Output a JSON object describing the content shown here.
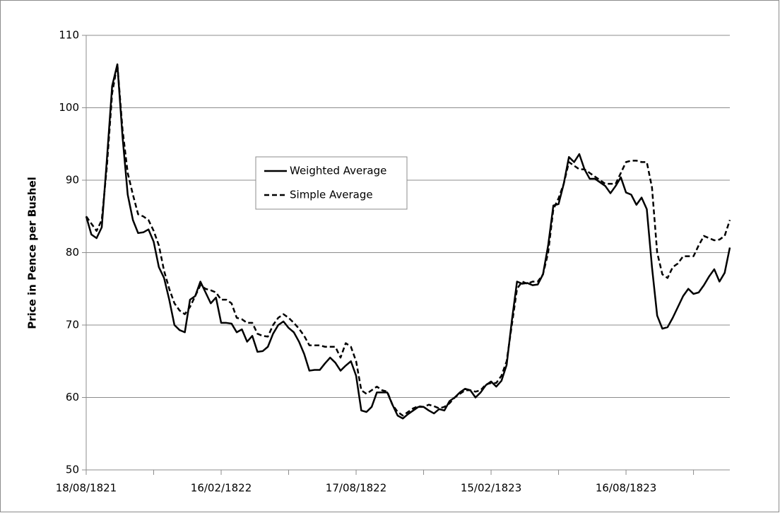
{
  "chart_data": {
    "type": "line",
    "ylabel": "Price in Pence per Bushel",
    "categories": [
      "18/08/1821",
      null,
      null,
      null,
      null,
      null,
      null,
      null,
      null,
      null,
      null,
      null,
      null,
      null,
      null,
      null,
      null,
      null,
      null,
      null,
      null,
      null,
      null,
      null,
      null,
      null,
      "16/02/1822",
      null,
      null,
      null,
      null,
      null,
      null,
      null,
      null,
      null,
      null,
      null,
      null,
      null,
      null,
      null,
      null,
      null,
      null,
      null,
      null,
      null,
      null,
      null,
      null,
      null,
      "17/08/1822",
      null,
      null,
      null,
      null,
      null,
      null,
      null,
      null,
      null,
      null,
      null,
      null,
      null,
      null,
      null,
      null,
      null,
      null,
      null,
      null,
      null,
      null,
      null,
      null,
      null,
      "15/02/1823",
      null,
      null,
      null,
      null,
      null,
      null,
      null,
      null,
      null,
      null,
      null,
      null,
      null,
      null,
      null,
      null,
      null,
      null,
      null,
      null,
      null,
      null,
      null,
      null,
      null,
      "16/08/1823",
      null,
      null,
      null,
      null,
      null,
      null,
      null,
      null,
      null,
      null,
      null,
      null,
      null,
      null,
      null,
      null,
      null,
      null,
      null,
      null
    ],
    "series": [
      {
        "name": "Weighted Average",
        "color": "#000000",
        "dash": false,
        "values": [
          85,
          82.5,
          82,
          83.5,
          93,
          103,
          106,
          96,
          88,
          84.5,
          82.7,
          82.8,
          83.2,
          81.5,
          78,
          76.5,
          73.5,
          70,
          69.3,
          69,
          73.5,
          74,
          76,
          74.5,
          73,
          73.8,
          70.3,
          70.3,
          70.2,
          69,
          69.4,
          67.7,
          68.5,
          66.3,
          66.4,
          67,
          68.8,
          70,
          70.5,
          69.6,
          69,
          67.7,
          66,
          63.7,
          63.8,
          63.8,
          64.7,
          65.5,
          64.8,
          63.7,
          64.4,
          65,
          63,
          58.2,
          58,
          58.7,
          60.7,
          60.7,
          60.7,
          59,
          57.5,
          57.1,
          57.7,
          58.2,
          58.7,
          58.7,
          58.2,
          57.8,
          58.4,
          58.2,
          59.5,
          60,
          60.7,
          61.2,
          61,
          60,
          60.7,
          61.7,
          62.2,
          61.5,
          62.3,
          64.5,
          70.6,
          76,
          75.7,
          75.8,
          75.5,
          75.6,
          77,
          81,
          86.5,
          86.7,
          89.5,
          93.2,
          92.5,
          93.6,
          91.5,
          90.2,
          90.2,
          89.7,
          89.2,
          88.2,
          89.2,
          90.4,
          88.3,
          88,
          86.6,
          87.6,
          86,
          78,
          71.3,
          69.5,
          69.7,
          71,
          72.5,
          74,
          75,
          74.3,
          74.5,
          75.5,
          76.7,
          77.7,
          76,
          77.2,
          80.7
        ]
      },
      {
        "name": "Simple Average",
        "color": "#000000",
        "dash": true,
        "values": [
          85,
          84,
          83,
          84.5,
          92,
          102,
          106,
          97,
          91,
          88,
          85.3,
          85,
          84.5,
          83,
          81,
          77.5,
          75,
          73,
          72,
          71.5,
          72.5,
          74,
          75.5,
          75,
          74.8,
          74.5,
          73.5,
          73.5,
          73,
          71,
          70.8,
          70.3,
          70.3,
          68.8,
          68.5,
          68.4,
          70,
          71,
          71.5,
          71,
          70.3,
          69.5,
          68.5,
          67.2,
          67.2,
          67.2,
          67,
          67,
          67,
          65.5,
          67.5,
          67,
          65,
          61,
          60.5,
          61,
          61.5,
          61,
          60.8,
          59,
          58,
          57.5,
          58,
          58.5,
          58.8,
          58.7,
          59,
          58.8,
          58.5,
          58.7,
          59.2,
          60,
          60.5,
          61,
          61,
          60.8,
          61,
          61.8,
          62,
          62,
          63,
          65,
          70,
          75,
          76,
          75.7,
          76,
          76,
          77,
          80,
          86,
          87.5,
          89.5,
          92.5,
          92,
          91.5,
          91.5,
          91,
          90.5,
          90,
          89.5,
          89.5,
          89.5,
          91,
          92.5,
          92.7,
          92.7,
          92.5,
          92.5,
          89,
          80,
          77,
          76.5,
          78,
          78.5,
          79.5,
          79.5,
          79.5,
          81,
          82.3,
          82,
          81.7,
          81.8,
          82.3,
          84.5
        ]
      }
    ],
    "ylim": [
      50,
      110
    ],
    "yticks": [
      50,
      60,
      70,
      80,
      90,
      100,
      110
    ],
    "grid": true
  }
}
